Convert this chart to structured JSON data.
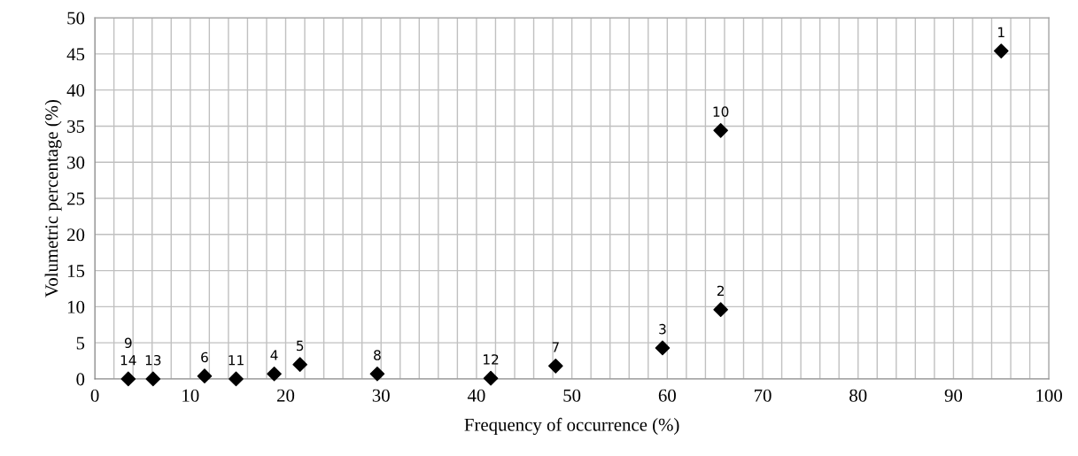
{
  "chart_data": {
    "type": "scatter",
    "xlabel": "Frequency of occurrence (%)",
    "ylabel": "Volumetric percentage (%)",
    "x": [
      95,
      65.6,
      59.5,
      18.8,
      21.5,
      11.5,
      48.3,
      29.6,
      null,
      65.6,
      14.8,
      41.5,
      6.1,
      3.5
    ],
    "values": [
      45.4,
      9.6,
      4.3,
      0.7,
      2.0,
      0.4,
      1.8,
      0.7,
      null,
      34.4,
      0.0,
      0.1,
      0.0,
      0.0
    ],
    "color": "#000000",
    "marker": "diamond",
    "annotations": [
      {
        "text": "1",
        "x": 95,
        "y": 45.4
      },
      {
        "text": "2",
        "x": 65.6,
        "y": 9.6
      },
      {
        "text": "3",
        "x": 59.5,
        "y": 4.3
      },
      {
        "text": "4",
        "x": 18.8,
        "y": 0.7
      },
      {
        "text": "5",
        "x": 21.5,
        "y": 2.0
      },
      {
        "text": "6",
        "x": 11.5,
        "y": 0.4
      },
      {
        "text": "7",
        "x": 48.3,
        "y": 1.8
      },
      {
        "text": "8",
        "x": 29.6,
        "y": 0.7
      },
      {
        "text": "9",
        "x": 3.5,
        "y": 0.0
      },
      {
        "text": "10",
        "x": 65.6,
        "y": 34.4
      },
      {
        "text": "11",
        "x": 14.8,
        "y": 0.0
      },
      {
        "text": "12",
        "x": 41.5,
        "y": 0.1
      },
      {
        "text": "13",
        "x": 6.1,
        "y": 0.0
      },
      {
        "text": "14",
        "x": 3.5,
        "y": 0.0
      }
    ],
    "xlim": [
      0,
      100
    ],
    "ylim": [
      0,
      50
    ],
    "xticks": [
      0,
      10,
      20,
      30,
      40,
      50,
      60,
      70,
      80,
      90,
      100
    ],
    "yticks": [
      0,
      5,
      10,
      15,
      20,
      25,
      30,
      35,
      40,
      45,
      50
    ],
    "grid": true
  }
}
